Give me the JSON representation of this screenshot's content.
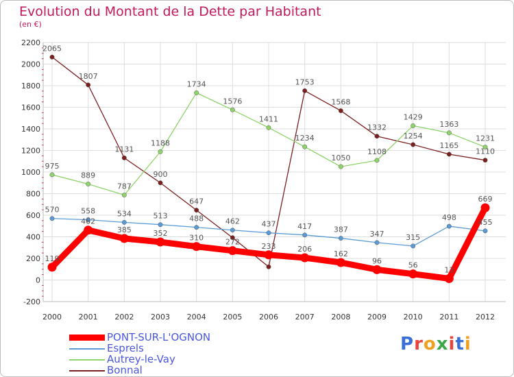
{
  "title": "Evolution du Montant de la Dette par Habitant",
  "subtitle": "(en €)",
  "colors": {
    "title": "#c2185b",
    "grid": "#dddddd",
    "axis_text": "#333333",
    "value_text": "#555555",
    "legend_text": "#4a56e0"
  },
  "chart_data": {
    "type": "line",
    "x": [
      "2000",
      "2001",
      "2002",
      "2003",
      "2004",
      "2005",
      "2006",
      "2007",
      "2008",
      "2009",
      "2010",
      "2011",
      "2012"
    ],
    "yticks": [
      "-200",
      "0",
      "200",
      "400",
      "600",
      "800",
      "1000",
      "1200",
      "1400",
      "1600",
      "1800",
      "2000",
      "2200"
    ],
    "ylim": [
      -200,
      2200
    ],
    "grid": true,
    "legend_position": "bottom-left",
    "series": [
      {
        "name": "Bonnal",
        "color": "#7b1e1e",
        "values": [
          2065,
          1807,
          1131,
          900,
          647,
          392,
          122,
          1753,
          1568,
          1332,
          1254,
          1165,
          1110
        ],
        "labels": [
          "2065",
          "1807",
          "1131",
          "900",
          "647",
          "",
          "",
          "1753",
          "1568",
          "1332",
          "1254",
          "1165",
          "1110"
        ]
      },
      {
        "name": "Autrey-le-Vay",
        "color": "#8ed36b",
        "values": [
          975,
          889,
          787,
          1188,
          1734,
          1576,
          1411,
          1234,
          1050,
          1108,
          1429,
          1363,
          1231
        ],
        "labels": [
          "975",
          "889",
          "787",
          "1188",
          "1734",
          "1576",
          "1411",
          "1234",
          "1050",
          "1108",
          "1429",
          "1363",
          "1231"
        ]
      },
      {
        "name": "Esprels",
        "color": "#5b9bd5",
        "values": [
          570,
          558,
          534,
          513,
          488,
          462,
          437,
          417,
          387,
          347,
          315,
          498,
          455
        ],
        "labels": [
          "570",
          "558",
          "534",
          "513",
          "488",
          "462",
          "437",
          "417",
          "387",
          "347",
          "315",
          "498",
          "455"
        ]
      },
      {
        "name": "PONT-SUR-L'OGNON",
        "color": "#ff0000",
        "values": [
          119,
          462,
          385,
          352,
          310,
          272,
          233,
          206,
          162,
          96,
          56,
          13,
          669
        ],
        "labels": [
          "119",
          "462",
          "385",
          "352",
          "310",
          "272",
          "233",
          "206",
          "162",
          "96",
          "56",
          "13",
          "669"
        ]
      }
    ]
  },
  "legend": [
    {
      "label": "PONT-SUR-L'OGNON",
      "color": "#ff0000"
    },
    {
      "label": "Esprels",
      "color": "#5b9bd5"
    },
    {
      "label": "Autrey-le-Vay",
      "color": "#8ed36b"
    },
    {
      "label": "Bonnal",
      "color": "#7b1e1e"
    }
  ],
  "logo": {
    "text": "Proxiti",
    "letter_colors": [
      "#3a6fd8",
      "#e8443a",
      "#f0a020",
      "#3aa84a",
      "#e8443a",
      "#3a6fd8",
      "#f0a020"
    ]
  }
}
